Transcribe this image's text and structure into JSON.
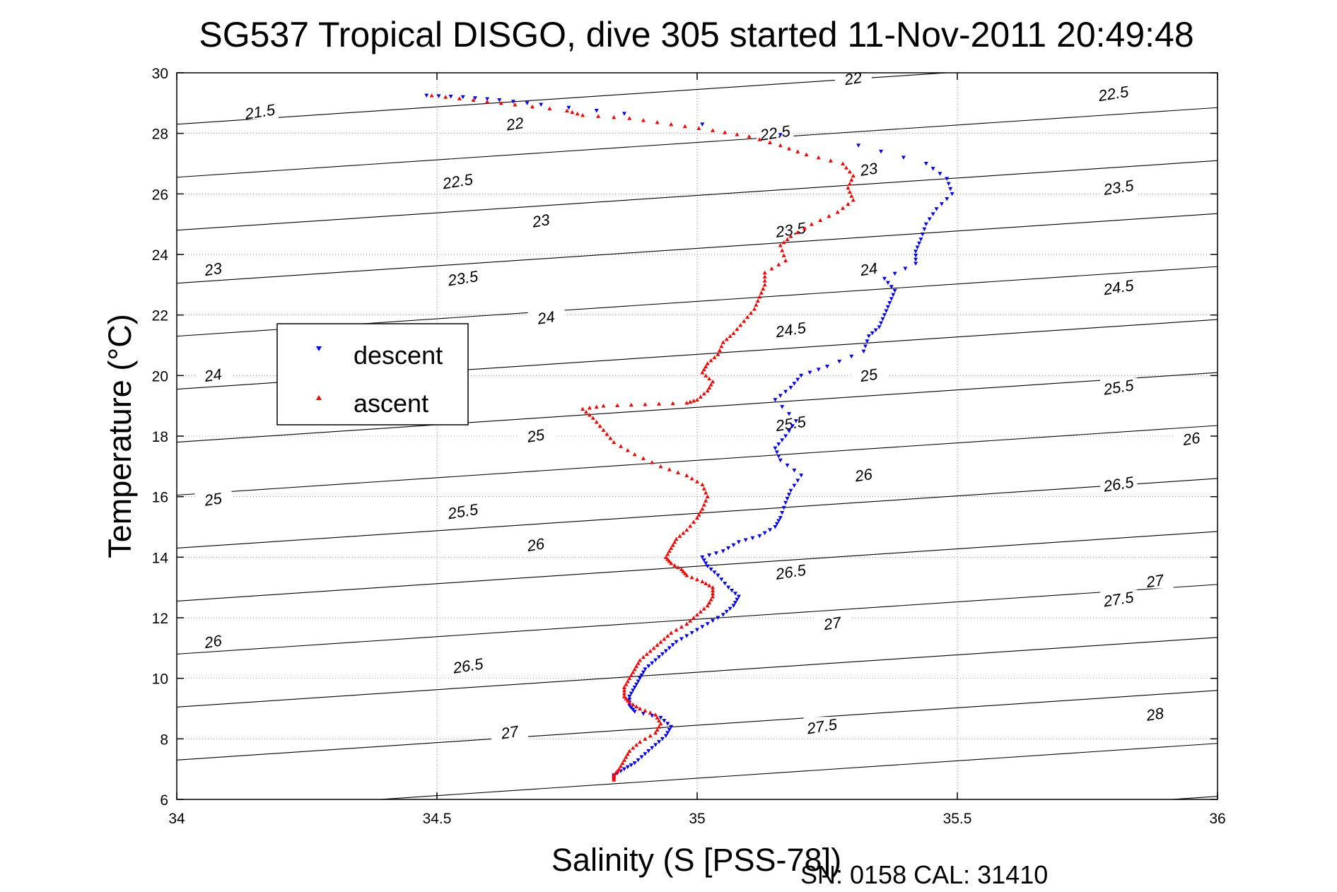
{
  "title": "SG537 Tropical DISGO, dive 305 started 11-Nov-2011 20:49:48",
  "footer": "SN: 0158  CAL: 31410",
  "chart_data": {
    "type": "scatter",
    "title": "SG537 Tropical DISGO, dive 305 started 11-Nov-2011 20:49:48",
    "xlabel": "Salinity (S [PSS-78])",
    "ylabel": "Temperature (°C)",
    "xlim": [
      34,
      36
    ],
    "ylim": [
      6,
      30
    ],
    "xticks": [
      34,
      34.5,
      35,
      35.5,
      36
    ],
    "xtick_labels": [
      "34",
      "34.5",
      "35",
      "35.5",
      "36"
    ],
    "yticks": [
      6,
      8,
      10,
      12,
      14,
      16,
      18,
      20,
      22,
      24,
      26,
      28,
      30
    ],
    "ytick_labels": [
      "6",
      "8",
      "10",
      "12",
      "14",
      "16",
      "18",
      "20",
      "22",
      "24",
      "26",
      "28",
      "30"
    ],
    "grid": true,
    "legend": {
      "placement": "left",
      "entries": [
        "descent",
        "ascent"
      ]
    },
    "series": [
      {
        "name": "descent",
        "color": "#0000ff",
        "marker": "triangle-down",
        "points": [
          [
            34.48,
            29.25
          ],
          [
            34.55,
            29.2
          ],
          [
            34.62,
            29.1
          ],
          [
            34.7,
            28.95
          ],
          [
            34.86,
            28.65
          ],
          [
            35.31,
            27.6
          ],
          [
            35.44,
            27.0
          ],
          [
            35.48,
            26.5
          ],
          [
            35.49,
            26.0
          ],
          [
            35.46,
            25.5
          ],
          [
            35.44,
            25.0
          ],
          [
            35.43,
            24.5
          ],
          [
            35.42,
            24.1
          ],
          [
            35.42,
            23.7
          ],
          [
            35.36,
            23.2
          ],
          [
            35.38,
            22.8
          ],
          [
            35.37,
            22.4
          ],
          [
            35.36,
            22.0
          ],
          [
            35.35,
            21.6
          ],
          [
            35.33,
            21.3
          ],
          [
            35.32,
            20.8
          ],
          [
            35.25,
            20.3
          ],
          [
            35.2,
            20.0
          ],
          [
            35.18,
            19.6
          ],
          [
            35.15,
            19.2
          ],
          [
            35.19,
            18.5
          ],
          [
            35.17,
            18.0
          ],
          [
            35.15,
            17.6
          ],
          [
            35.16,
            17.2
          ],
          [
            35.2,
            16.7
          ],
          [
            35.18,
            16.2
          ],
          [
            35.17,
            15.8
          ],
          [
            35.16,
            15.3
          ],
          [
            35.15,
            15.0
          ],
          [
            35.12,
            14.7
          ],
          [
            35.08,
            14.5
          ],
          [
            35.05,
            14.2
          ],
          [
            35.01,
            14.0
          ],
          [
            35.02,
            13.7
          ],
          [
            35.04,
            13.4
          ],
          [
            35.06,
            13.0
          ],
          [
            35.08,
            12.7
          ],
          [
            35.07,
            12.4
          ],
          [
            35.05,
            12.1
          ],
          [
            35.02,
            11.8
          ],
          [
            34.99,
            11.5
          ],
          [
            34.96,
            11.2
          ],
          [
            34.94,
            10.9
          ],
          [
            34.92,
            10.6
          ],
          [
            34.9,
            10.3
          ],
          [
            34.89,
            10.0
          ],
          [
            34.88,
            9.7
          ],
          [
            34.87,
            9.4
          ],
          [
            34.87,
            9.1
          ],
          [
            34.88,
            8.9
          ],
          [
            34.93,
            8.7
          ],
          [
            34.95,
            8.4
          ],
          [
            34.94,
            8.1
          ],
          [
            34.92,
            7.8
          ],
          [
            34.9,
            7.5
          ],
          [
            34.88,
            7.2
          ],
          [
            34.86,
            7.0
          ],
          [
            34.84,
            6.8
          ],
          [
            34.84,
            6.65
          ]
        ]
      },
      {
        "name": "ascent",
        "color": "#ff0000",
        "marker": "triangle-up",
        "points": [
          [
            34.49,
            29.25
          ],
          [
            34.57,
            29.1
          ],
          [
            34.65,
            28.95
          ],
          [
            34.75,
            28.75
          ],
          [
            34.78,
            28.6
          ],
          [
            34.87,
            28.5
          ],
          [
            34.95,
            28.3
          ],
          [
            35.03,
            28.1
          ],
          [
            35.1,
            27.9
          ],
          [
            35.16,
            27.6
          ],
          [
            35.21,
            27.3
          ],
          [
            35.28,
            27.0
          ],
          [
            35.3,
            26.6
          ],
          [
            35.29,
            26.2
          ],
          [
            35.3,
            25.8
          ],
          [
            35.27,
            25.4
          ],
          [
            35.22,
            25.0
          ],
          [
            35.18,
            24.6
          ],
          [
            35.16,
            24.3
          ],
          [
            35.17,
            23.8
          ],
          [
            35.13,
            23.4
          ],
          [
            35.13,
            23.0
          ],
          [
            35.12,
            22.6
          ],
          [
            35.11,
            22.2
          ],
          [
            35.09,
            21.8
          ],
          [
            35.07,
            21.4
          ],
          [
            35.05,
            21.1
          ],
          [
            35.04,
            20.7
          ],
          [
            35.02,
            20.4
          ],
          [
            35.01,
            20.1
          ],
          [
            35.03,
            19.8
          ],
          [
            35.02,
            19.5
          ],
          [
            35.0,
            19.2
          ],
          [
            34.98,
            19.1
          ],
          [
            34.9,
            19.05
          ],
          [
            34.82,
            19.0
          ],
          [
            34.78,
            18.9
          ],
          [
            34.8,
            18.6
          ],
          [
            34.82,
            18.2
          ],
          [
            34.84,
            17.8
          ],
          [
            34.88,
            17.4
          ],
          [
            34.93,
            17.0
          ],
          [
            34.98,
            16.7
          ],
          [
            35.01,
            16.4
          ],
          [
            35.02,
            16.0
          ],
          [
            35.01,
            15.6
          ],
          [
            35.0,
            15.3
          ],
          [
            34.98,
            14.9
          ],
          [
            34.96,
            14.6
          ],
          [
            34.95,
            14.3
          ],
          [
            34.94,
            14.0
          ],
          [
            34.95,
            13.8
          ],
          [
            34.97,
            13.6
          ],
          [
            34.98,
            13.4
          ],
          [
            35.01,
            13.2
          ],
          [
            35.03,
            13.0
          ],
          [
            35.03,
            12.7
          ],
          [
            35.02,
            12.4
          ],
          [
            35.0,
            12.1
          ],
          [
            34.98,
            11.8
          ],
          [
            34.95,
            11.5
          ],
          [
            34.93,
            11.2
          ],
          [
            34.91,
            10.9
          ],
          [
            34.89,
            10.6
          ],
          [
            34.88,
            10.3
          ],
          [
            34.87,
            10.0
          ],
          [
            34.86,
            9.7
          ],
          [
            34.86,
            9.4
          ],
          [
            34.87,
            9.2
          ],
          [
            34.89,
            9.0
          ],
          [
            34.92,
            8.8
          ],
          [
            34.93,
            8.5
          ],
          [
            34.92,
            8.2
          ],
          [
            34.89,
            7.9
          ],
          [
            34.87,
            7.6
          ],
          [
            34.86,
            7.3
          ],
          [
            34.85,
            7.0
          ],
          [
            34.84,
            6.8
          ],
          [
            34.84,
            6.65
          ]
        ]
      }
    ],
    "contour_labels": [
      [
        34.16,
        28.7,
        "21.5"
      ],
      [
        34.65,
        28.3,
        "22"
      ],
      [
        35.3,
        29.8,
        "22"
      ],
      [
        35.8,
        29.3,
        "22.5"
      ],
      [
        34.54,
        26.4,
        "22.5"
      ],
      [
        35.15,
        28.0,
        "22.5"
      ],
      [
        35.33,
        26.8,
        "23"
      ],
      [
        35.81,
        26.2,
        "23.5"
      ],
      [
        34.07,
        23.5,
        "23"
      ],
      [
        34.7,
        25.1,
        "23"
      ],
      [
        35.18,
        24.8,
        "23.5"
      ],
      [
        35.33,
        23.5,
        "24"
      ],
      [
        35.81,
        22.9,
        "24.5"
      ],
      [
        34.55,
        23.2,
        "23.5"
      ],
      [
        34.71,
        21.9,
        "24"
      ],
      [
        35.18,
        21.5,
        "24.5"
      ],
      [
        35.33,
        20.0,
        "25"
      ],
      [
        35.81,
        19.6,
        "25.5"
      ],
      [
        34.07,
        20.0,
        "24"
      ],
      [
        34.69,
        18.0,
        "25"
      ],
      [
        35.18,
        18.4,
        "25.5"
      ],
      [
        35.32,
        16.7,
        "26"
      ],
      [
        35.81,
        16.4,
        "26.5"
      ],
      [
        35.95,
        17.9,
        "26"
      ],
      [
        34.07,
        15.9,
        "25"
      ],
      [
        34.55,
        15.5,
        "25.5"
      ],
      [
        34.69,
        14.4,
        "26"
      ],
      [
        35.18,
        13.5,
        "26.5"
      ],
      [
        35.26,
        11.8,
        "27"
      ],
      [
        35.81,
        12.6,
        "27.5"
      ],
      [
        35.88,
        13.2,
        "27"
      ],
      [
        34.07,
        11.2,
        "26"
      ],
      [
        34.56,
        10.4,
        "26.5"
      ],
      [
        34.64,
        8.2,
        "27"
      ],
      [
        35.24,
        8.4,
        "27.5"
      ],
      [
        35.88,
        8.8,
        "28"
      ]
    ]
  }
}
